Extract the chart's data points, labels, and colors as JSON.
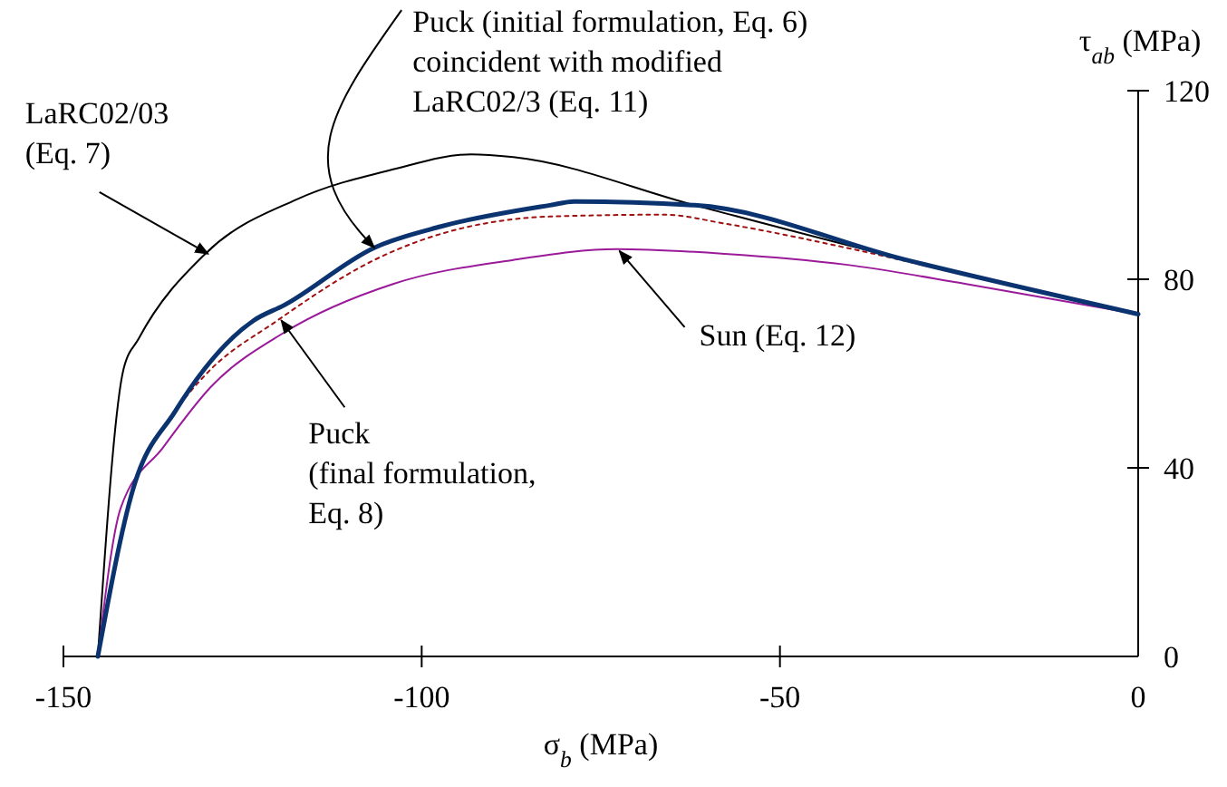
{
  "chart_data": {
    "type": "line",
    "xlabel": "σ$_{b}$ (MPa)",
    "ylabel": "τ$_{ab}$ (MPa)",
    "xlim": [
      -150,
      0
    ],
    "xticks": [
      -150,
      -100,
      -50,
      0
    ],
    "ylim": [
      0,
      120
    ],
    "yticks": [
      0,
      40,
      80,
      120
    ],
    "grid": false,
    "series": [
      {
        "color": "#000000",
        "line_style": "solid",
        "x": [
          -145.2,
          -141.6,
          -139.5,
          -130.2,
          -117.5,
          -104,
          -93.1,
          -87.2,
          -61.9,
          -32.4,
          0
        ],
        "values": [
          0,
          61,
          67.4,
          85.4,
          96.9,
          103.3,
          106.5,
          105.9,
          95.7,
          84.1,
          72.6
        ]
      },
      {
        "color": "#9a1a9a",
        "line_style": "solid",
        "x": [
          -145.2,
          -142,
          -136.1,
          -129.4,
          -119.2,
          -104,
          -87.2,
          -72.8,
          -57.7,
          -40.8,
          -24,
          0
        ],
        "values": [
          0,
          31.5,
          44.3,
          57.2,
          68.7,
          79,
          84.1,
          86.4,
          85.4,
          83.1,
          79,
          72.6
        ]
      },
      {
        "color": "#a01010",
        "line_style": "dotted",
        "x": [
          -145.2,
          -140.3,
          -134.4,
          -130.2,
          -120.1,
          -106.6,
          -82.1,
          -66.1,
          -57.7,
          -40.8,
          -24,
          0
        ],
        "values": [
          0,
          35.4,
          52,
          59.7,
          71.3,
          84.1,
          93.3,
          93.7,
          91.8,
          86.7,
          80.9,
          72.6
        ]
      },
      {
        "color": "#0a3370",
        "line_style": "solid",
        "x": [
          -145.2,
          -140.3,
          -134.4,
          -123.4,
          -119.2,
          -106.6,
          -97.3,
          -82.1,
          -78.7,
          -61.9,
          -32.4,
          0
        ],
        "values": [
          0,
          35.4,
          52,
          71.3,
          74.5,
          86.7,
          91.2,
          95.7,
          96.5,
          95.7,
          84.1,
          72.6
        ]
      }
    ],
    "annotations": [
      {
        "text": "LaRC02/03\n(Eq. 7)",
        "x": -129.8,
        "y": 85.4
      },
      {
        "text": "Puck (initial formulation, Eq. 6)\ncoincident with modified\nLaRC02/3 (Eq. 11)",
        "x": -106.6,
        "y": 86.7
      },
      {
        "text": "Puck\n(final formulation,\nEq. 8)",
        "x": -119.6,
        "y": 71.3
      },
      {
        "text": "Sun (Eq. 12)",
        "x": -72.4,
        "y": 86
      }
    ]
  }
}
